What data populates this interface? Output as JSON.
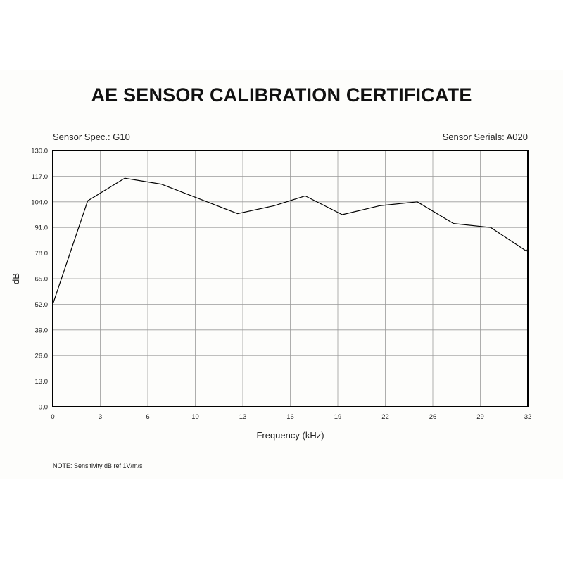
{
  "certificate": {
    "title": "AE SENSOR CALIBRATION CERTIFICATE",
    "sensor_spec": "Sensor Spec.: G10",
    "sensor_serials": "Sensor Serials: A020",
    "note": "NOTE:  Sensitivity dB ref 1V/m/s"
  },
  "chart_data": {
    "type": "line",
    "title": "",
    "xlabel": "Frequency (kHz)",
    "ylabel": "dB",
    "xlim": [
      0,
      32
    ],
    "ylim": [
      0,
      130
    ],
    "grid": true,
    "x_ticks": [
      "0",
      "3",
      "6",
      "10",
      "13",
      "16",
      "19",
      "22",
      "26",
      "29",
      "32"
    ],
    "y_ticks": [
      "0.0",
      "13.0",
      "26.0",
      "39.0",
      "52.0",
      "65.0",
      "78.0",
      "91.0",
      "104.0",
      "117.0",
      "130.0"
    ],
    "series": [
      {
        "color": "#000000",
        "x": [
          0,
          2.35,
          4.85,
          7.3,
          12.45,
          14.9,
          17.0,
          19.5,
          22.0,
          24.55,
          27.0,
          29.5,
          31.9,
          32
        ],
        "y": [
          52,
          104.5,
          116,
          113,
          98,
          102,
          107,
          97.5,
          102,
          104,
          93,
          91,
          79,
          80
        ]
      }
    ]
  }
}
